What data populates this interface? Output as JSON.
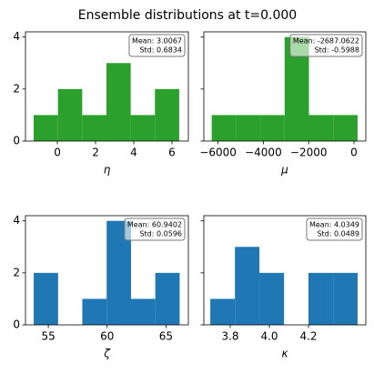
{
  "title": "Ensemble distributions at t=0.000",
  "chart_data": [
    {
      "type": "histogram",
      "xlabel": "η",
      "color": "#2ca02c",
      "bins": [
        -1.24,
        0.03,
        1.3,
        2.57,
        3.84,
        5.11,
        6.38
      ],
      "values": [
        1,
        2,
        1,
        3,
        1,
        2
      ],
      "xlim": [
        -1.67,
        6.86
      ],
      "ylim": [
        0,
        4.2
      ],
      "xticks": [
        0,
        2,
        4,
        6
      ],
      "yticks": [
        0,
        2,
        4
      ],
      "annotation": [
        "Mean: 3.0067",
        "Std: 0.6834"
      ]
    },
    {
      "type": "histogram",
      "xlabel": "μ",
      "color": "#2ca02c",
      "bins": [
        -6280,
        -5207,
        -4134,
        -3061,
        -1988,
        -915,
        158
      ],
      "values": [
        1,
        1,
        1,
        4,
        1,
        1
      ],
      "xlim": [
        -6627,
        522
      ],
      "ylim": [
        0,
        4.2
      ],
      "xticks": [
        {
          "value": -6000,
          "label": "−6000"
        },
        {
          "value": -4000,
          "label": "−4000"
        },
        {
          "value": -2000,
          "label": "−2000"
        },
        0
      ],
      "yticks": [
        0,
        2,
        4
      ],
      "annotation": [
        "Mean: -2687.0622",
        "Std: -0.5988"
      ]
    },
    {
      "type": "histogram",
      "xlabel": "ζ",
      "color": "#1f77b4",
      "bins": [
        53.76,
        55.83,
        57.89,
        59.96,
        62.03,
        64.09,
        66.16
      ],
      "values": [
        2,
        0,
        1,
        4,
        1,
        2
      ],
      "xlim": [
        53.06,
        66.9
      ],
      "ylim": [
        0,
        4.2
      ],
      "xticks": [
        55,
        60,
        65
      ],
      "yticks": [
        0,
        2,
        4
      ],
      "annotation": [
        "Mean: 60.9402",
        "Std: 0.0596"
      ]
    },
    {
      "type": "histogram",
      "xlabel": "κ",
      "color": "#1f77b4",
      "bins": [
        3.698,
        3.824,
        3.949,
        4.075,
        4.2,
        4.326,
        4.451
      ],
      "values": [
        1,
        3,
        2,
        0,
        2,
        2
      ],
      "xlim": [
        3.665,
        4.493
      ],
      "ylim": [
        0,
        4.2
      ],
      "xticks": [
        3.8,
        {
          "value": 4.0,
          "label": "4.0"
        },
        4.2
      ],
      "yticks": [
        0,
        2,
        4
      ],
      "annotation": [
        "Mean: 4.0349",
        "Std: 0.0489"
      ]
    }
  ]
}
